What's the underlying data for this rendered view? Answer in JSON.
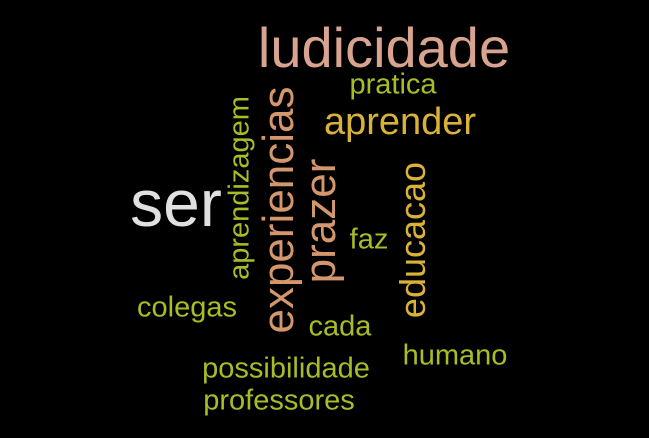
{
  "word_cloud": {
    "background_color": "#000000",
    "words": [
      {
        "text": "ludicidade",
        "color": "#d9a48f",
        "orientation": "horizontal"
      },
      {
        "text": "ser",
        "color": "#e0e0e0",
        "orientation": "horizontal"
      },
      {
        "text": "experiencias",
        "color": "#d4966c",
        "orientation": "vertical"
      },
      {
        "text": "prazer",
        "color": "#d4966c",
        "orientation": "vertical"
      },
      {
        "text": "aprender",
        "color": "#d9b23a",
        "orientation": "horizontal"
      },
      {
        "text": "educacao",
        "color": "#d9b23a",
        "orientation": "vertical"
      },
      {
        "text": "aprendizagem",
        "color": "#a9bc26",
        "orientation": "vertical"
      },
      {
        "text": "pratica",
        "color": "#a9bc26",
        "orientation": "horizontal"
      },
      {
        "text": "faz",
        "color": "#a9bc26",
        "orientation": "horizontal"
      },
      {
        "text": "colegas",
        "color": "#a9bc26",
        "orientation": "horizontal"
      },
      {
        "text": "cada",
        "color": "#a9bc26",
        "orientation": "horizontal"
      },
      {
        "text": "humano",
        "color": "#a9bc26",
        "orientation": "horizontal"
      },
      {
        "text": "possibilidade",
        "color": "#a9bc26",
        "orientation": "horizontal"
      },
      {
        "text": "professores",
        "color": "#a9bc26",
        "orientation": "horizontal"
      }
    ]
  }
}
